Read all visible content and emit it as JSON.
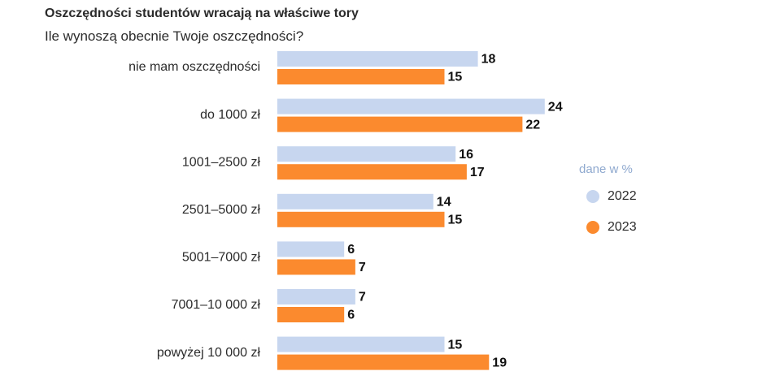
{
  "chart_data": {
    "type": "bar",
    "orientation": "horizontal",
    "title": "Oszczędności studentów wracają na właściwe tory",
    "subtitle": "Ile wynoszą obecnie Twoje oszczędności?",
    "categories": [
      "nie mam oszczędności",
      "do 1000 zł",
      "1001–2500 zł",
      "2501–5000 zł",
      "5001–7000 zł",
      "7001–10 000 zł",
      "powyżej 10 000 zł"
    ],
    "series": [
      {
        "name": "2022",
        "color": "#c7d6ef",
        "values": [
          18,
          24,
          16,
          14,
          6,
          7,
          15
        ]
      },
      {
        "name": "2023",
        "color": "#fb8a2e",
        "values": [
          15,
          22,
          17,
          15,
          7,
          6,
          19
        ]
      }
    ],
    "legend_title": "dane w %",
    "legend_position": "right",
    "grid": false,
    "xlim": [
      0,
      24
    ]
  }
}
